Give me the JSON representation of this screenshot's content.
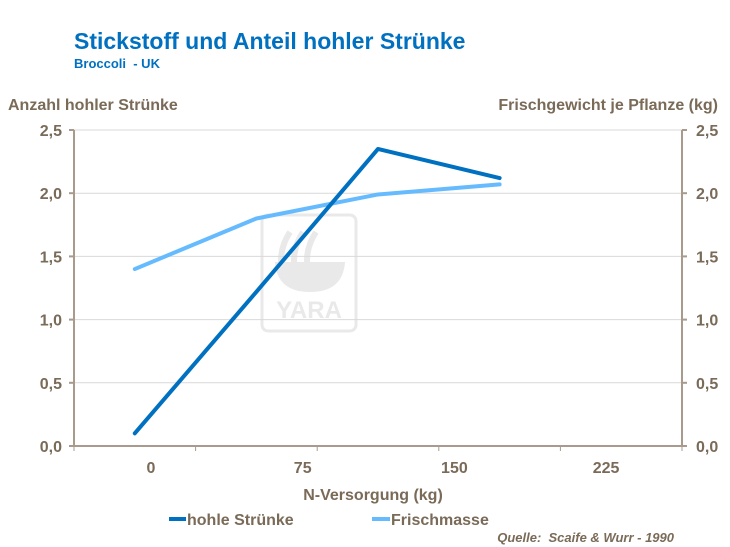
{
  "chart_data": {
    "type": "line",
    "title": "Stickstoff und Anteil hohler Strünke",
    "subtitle": "Broccoli  - UK",
    "xlabel": "N-Versorgung (kg)",
    "ylabel_left": "Anzahl hohler Strünke",
    "ylabel_right": "Frischgewicht je Pflanze (kg)",
    "categories": [
      "0",
      "75",
      "150",
      "225"
    ],
    "y_ticks": [
      "0,0",
      "0,5",
      "1,0",
      "1,5",
      "2,0",
      "2,5"
    ],
    "ylim_left": [
      0,
      2.5
    ],
    "ylim_right": [
      0,
      2.5
    ],
    "grid": true,
    "legend_placement": "bottom",
    "series": [
      {
        "name": "hohle Strünke",
        "axis": "left",
        "color": "#0070c0",
        "values": [
          0.1,
          1.22,
          2.35,
          2.12
        ]
      },
      {
        "name": "Frischmasse",
        "axis": "right",
        "color": "#66bbff",
        "values": [
          1.4,
          1.8,
          1.99,
          2.07
        ]
      }
    ],
    "source": "Quelle:  Scaife & Wurr - 1990",
    "watermark": "YARA"
  },
  "colors": {
    "title": "#0070c0",
    "text": "#7a6a58",
    "axis": "#a89a8c",
    "grid": "#d9d9d9"
  }
}
